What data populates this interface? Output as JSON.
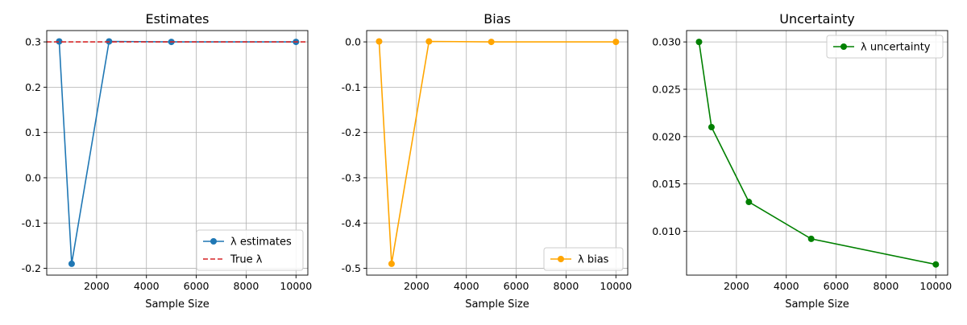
{
  "chart_data": [
    {
      "type": "line",
      "title": "Estimates",
      "xlabel": "Sample Size",
      "ylabel": "",
      "xlim": [
        0,
        10475
      ],
      "ylim": [
        -0.215,
        0.325
      ],
      "x_ticks": [
        2000,
        4000,
        6000,
        8000,
        10000
      ],
      "y_ticks": [
        -0.2,
        -0.1,
        0.0,
        0.1,
        0.2,
        0.3
      ],
      "y_decimals": 1,
      "grid": true,
      "legend": "bottom-right",
      "series": [
        {
          "name": "λ estimates",
          "x": [
            500,
            1000,
            2500,
            5000,
            10000
          ],
          "y": [
            0.301,
            -0.19,
            0.301,
            0.3,
            0.3
          ],
          "color": "#1f77b4",
          "style": "solid",
          "marker": true
        },
        {
          "name": "True λ",
          "kind": "hline",
          "y": 0.3,
          "color": "#d62728",
          "style": "dashed",
          "marker": false
        }
      ]
    },
    {
      "type": "line",
      "title": "Bias",
      "xlabel": "Sample Size",
      "ylabel": "",
      "xlim": [
        0,
        10475
      ],
      "ylim": [
        -0.515,
        0.025
      ],
      "x_ticks": [
        2000,
        4000,
        6000,
        8000,
        10000
      ],
      "y_ticks": [
        -0.5,
        -0.4,
        -0.3,
        -0.2,
        -0.1,
        0.0
      ],
      "y_decimals": 1,
      "grid": true,
      "legend": "bottom-right",
      "series": [
        {
          "name": "λ bias",
          "x": [
            500,
            1000,
            2500,
            5000,
            10000
          ],
          "y": [
            0.001,
            -0.49,
            0.001,
            0.0,
            0.0
          ],
          "color": "#ffa500",
          "style": "solid",
          "marker": true
        }
      ]
    },
    {
      "type": "line",
      "title": "Uncertainty",
      "xlabel": "Sample Size",
      "ylabel": "",
      "xlim": [
        0,
        10475
      ],
      "ylim": [
        0.00537,
        0.0312
      ],
      "x_ticks": [
        2000,
        4000,
        6000,
        8000,
        10000
      ],
      "y_ticks": [
        0.01,
        0.015,
        0.02,
        0.025,
        0.03
      ],
      "y_decimals": 3,
      "grid": true,
      "legend": "top-right",
      "series": [
        {
          "name": "λ uncertainty",
          "x": [
            500,
            1000,
            2500,
            5000,
            10000
          ],
          "y": [
            0.03,
            0.021,
            0.0131,
            0.0092,
            0.0065
          ],
          "color": "#008000",
          "style": "solid",
          "marker": true
        }
      ]
    }
  ]
}
